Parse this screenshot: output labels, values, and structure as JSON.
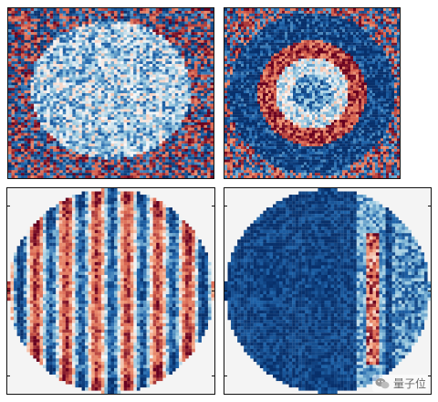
{
  "panels": [
    {
      "id": "p1",
      "pattern": "blob"
    },
    {
      "id": "p2",
      "pattern": "ring"
    },
    {
      "id": "p3",
      "pattern": "stripes"
    },
    {
      "id": "p4",
      "pattern": "band"
    }
  ],
  "colormap": {
    "deep_blue": "#08306b",
    "mid_blue": "#2166ac",
    "light_blue": "#92c5de",
    "white": "#f7f7f7",
    "light_red": "#f4a582",
    "mid_red": "#d6604d",
    "deep_red": "#67001f"
  },
  "watermark": {
    "text": "量子位",
    "icon": "wechat-icon"
  }
}
